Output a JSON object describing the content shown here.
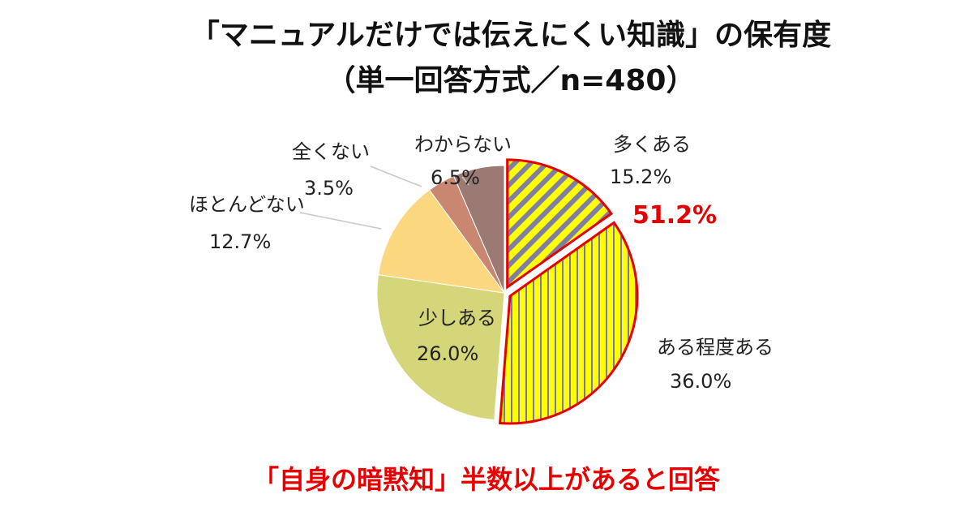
{
  "title_line1": "「マニュアルだけでは伝えにくい知識」の保有度",
  "title_line2": "（単一回答方式／n=480）",
  "highlight_value": "51.2%",
  "footer_text": "「自身の暗黙知」半数以上があると回答",
  "colors": {
    "hatch_fill": "#ffff00",
    "stripe_diag": "#7f7fa6",
    "stripe_vert": "#7a73b8",
    "outline_red": "#e60000",
    "sukoshi": "#d5d57a",
    "hotondo": "#fbd77f",
    "mattaku": "#c98772",
    "wakaranai": "#9b7a74"
  },
  "chart_data": {
    "type": "pie",
    "title": "「マニュアルだけでは伝えにくい知識」の保有度",
    "subtitle": "（単一回答方式／n=480）",
    "slices": [
      {
        "label": "多くある",
        "value": 15.2,
        "value_label": "15.2%",
        "color": "#ffff00",
        "pattern": "diagonal",
        "exploded": true
      },
      {
        "label": "ある程度ある",
        "value": 36.0,
        "value_label": "36.0%",
        "color": "#ffff00",
        "pattern": "vertical",
        "exploded": true
      },
      {
        "label": "少しある",
        "value": 26.0,
        "value_label": "26.0%",
        "color": "#d5d57a",
        "pattern": "none",
        "exploded": false
      },
      {
        "label": "ほとんどない",
        "value": 12.7,
        "value_label": "12.7%",
        "color": "#fbd77f",
        "pattern": "none",
        "exploded": false
      },
      {
        "label": "全くない",
        "value": 3.5,
        "value_label": "3.5%",
        "color": "#c98772",
        "pattern": "none",
        "exploded": false
      },
      {
        "label": "わからない",
        "value": 6.5,
        "value_label": "6.5%",
        "color": "#9b7a74",
        "pattern": "none",
        "exploded": false
      }
    ],
    "annotation": "51.2%"
  }
}
